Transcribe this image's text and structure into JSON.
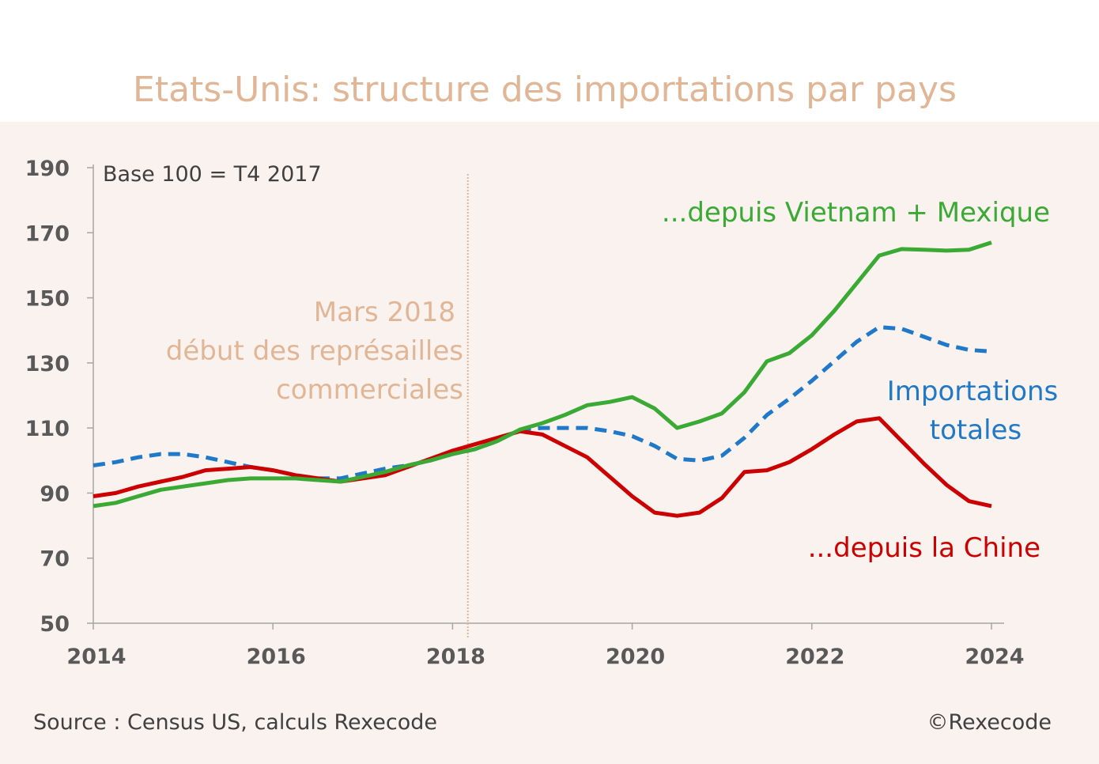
{
  "title": "Etats-Unis: structure des importations par pays",
  "base_note": "Base 100 = T4 2017",
  "event_annotation": {
    "lines": [
      "Mars 2018",
      "début des représailles",
      "commerciales"
    ],
    "x": 2018.17,
    "color": "#e0b696"
  },
  "series_labels": {
    "vietnam_mexique": "...depuis Vietnam + Mexique",
    "importations_totales": [
      "Importations",
      "totales"
    ],
    "chine": "...depuis la Chine"
  },
  "footer": {
    "source": "Source : Census US, calculs Rexecode",
    "copyright": "©Rexecode"
  },
  "chart_data": {
    "type": "line",
    "title": "Etats-Unis: structure des importations par pays",
    "xlabel": "",
    "ylabel": "",
    "xlim": [
      2014,
      2024.2
    ],
    "ylim": [
      50,
      190
    ],
    "x_ticks": [
      "2014",
      "2016",
      "2018",
      "2020",
      "2022",
      "2024"
    ],
    "y_ticks": [
      "50",
      "70",
      "90",
      "110",
      "130",
      "150",
      "170",
      "190"
    ],
    "grid": false,
    "series": [
      {
        "name": "...depuis Vietnam + Mexique",
        "color": "#3aaa35",
        "style": "solid",
        "x": [
          2014.0,
          2014.25,
          2014.5,
          2014.75,
          2015.0,
          2015.25,
          2015.5,
          2015.75,
          2016.0,
          2016.25,
          2016.5,
          2016.75,
          2017.0,
          2017.25,
          2017.5,
          2017.75,
          2018.0,
          2018.25,
          2018.5,
          2018.75,
          2019.0,
          2019.25,
          2019.5,
          2019.75,
          2020.0,
          2020.25,
          2020.5,
          2020.75,
          2021.0,
          2021.25,
          2021.5,
          2021.75,
          2022.0,
          2022.25,
          2022.5,
          2022.75,
          2023.0,
          2023.25,
          2023.5,
          2023.75,
          2024.0
        ],
        "values": [
          86,
          87,
          89,
          91,
          92,
          93,
          94,
          94.5,
          94.5,
          94.5,
          94,
          93.5,
          95,
          96.5,
          98.5,
          100,
          102,
          103.5,
          106,
          109.5,
          111.5,
          114,
          117,
          118,
          119.5,
          116,
          110,
          112,
          114.5,
          121,
          130.5,
          133,
          138.5,
          146,
          154.5,
          163,
          165,
          164.8,
          164.5,
          164.8,
          167
        ]
      },
      {
        "name": "Importations totales",
        "color": "#1f78c8",
        "style": "dashed",
        "x": [
          2014.0,
          2014.25,
          2014.5,
          2014.75,
          2015.0,
          2015.25,
          2015.5,
          2015.75,
          2016.0,
          2016.25,
          2016.5,
          2016.75,
          2017.0,
          2017.25,
          2017.5,
          2017.75,
          2018.0,
          2018.25,
          2018.5,
          2018.75,
          2019.0,
          2019.25,
          2019.5,
          2019.75,
          2020.0,
          2020.25,
          2020.5,
          2020.75,
          2021.0,
          2021.25,
          2021.5,
          2021.75,
          2022.0,
          2022.25,
          2022.5,
          2022.75,
          2023.0,
          2023.25,
          2023.5,
          2023.75,
          2024.0
        ],
        "values": [
          98.5,
          99.5,
          101,
          102,
          102,
          101,
          99.5,
          98,
          97,
          95.5,
          94.5,
          94.5,
          96,
          97.5,
          98.5,
          100,
          102,
          103.5,
          106,
          109.5,
          110,
          110,
          110,
          109,
          107.5,
          104.5,
          100.5,
          100,
          101.5,
          107,
          114,
          119,
          124.5,
          130.5,
          136.5,
          141,
          140.5,
          138,
          135.5,
          134,
          133.5
        ]
      },
      {
        "name": "...depuis la Chine",
        "color": "#cc0000",
        "style": "solid",
        "x": [
          2014.0,
          2014.25,
          2014.5,
          2014.75,
          2015.0,
          2015.25,
          2015.5,
          2015.75,
          2016.0,
          2016.25,
          2016.5,
          2016.75,
          2017.0,
          2017.25,
          2017.5,
          2017.75,
          2018.0,
          2018.25,
          2018.5,
          2018.75,
          2019.0,
          2019.25,
          2019.5,
          2019.75,
          2020.0,
          2020.25,
          2020.5,
          2020.75,
          2021.0,
          2021.25,
          2021.5,
          2021.75,
          2022.0,
          2022.25,
          2022.5,
          2022.75,
          2023.0,
          2023.25,
          2023.5,
          2023.75,
          2024.0
        ],
        "values": [
          89,
          90,
          92,
          93.5,
          95,
          97,
          97.5,
          98,
          97,
          95.5,
          94.5,
          93.5,
          94.5,
          95.5,
          98,
          100.5,
          103,
          105,
          107,
          109,
          108,
          104.5,
          101,
          95,
          89,
          84,
          83,
          84,
          88.5,
          96.5,
          97,
          99.5,
          103.5,
          108,
          112,
          113,
          106,
          99,
          92.5,
          87.5,
          86
        ]
      }
    ]
  }
}
